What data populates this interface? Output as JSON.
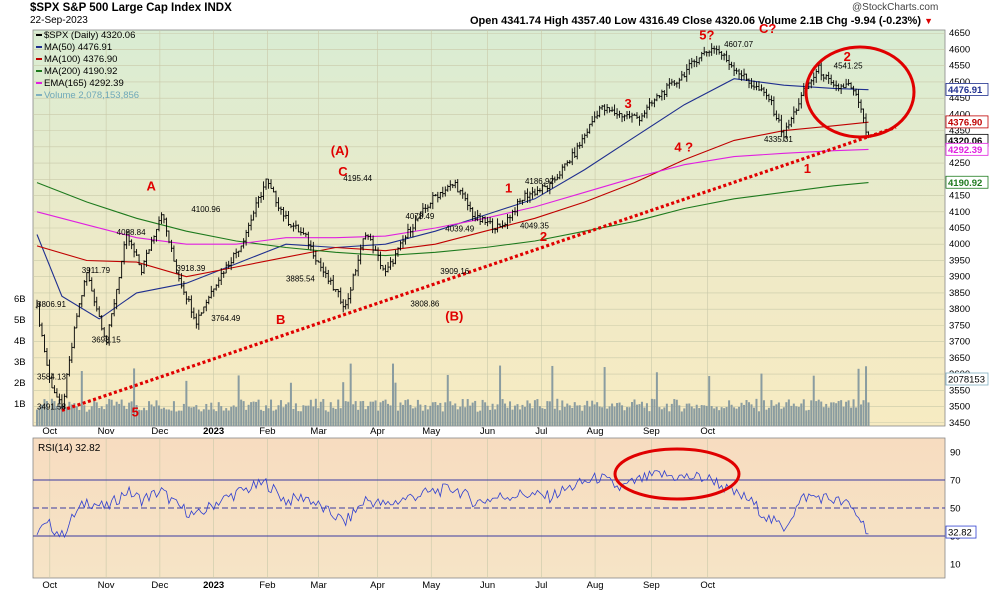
{
  "header": {
    "symbol_line": "$SPX S&P 500 Large Cap Index INDX",
    "date": "22-Sep-2023",
    "watermark": "@StockCharts.com",
    "ohlc": "Open 4341.74  High 4357.40  Low 4316.49  Close 4320.06  Volume 2.1B  Chg -9.94 (-0.23%)",
    "down_glyph": "▼"
  },
  "legend": [
    {
      "text": "$SPX (Daily) 4320.06",
      "color": "#000000"
    },
    {
      "text": "MA(50) 4476.91",
      "color": "#1f2f8f"
    },
    {
      "text": "MA(100) 4376.90",
      "color": "#c00000"
    },
    {
      "text": "MA(200) 4190.92",
      "color": "#1e7a1e"
    },
    {
      "text": "EMA(165) 4292.39",
      "color": "#e020e0"
    },
    {
      "text": "Volume 2,078,153,856",
      "color": "#7fb0c0"
    }
  ],
  "rsi_label": "RSI(14) 32.82",
  "colors": {
    "grid": "#c9c9a9",
    "price_bar": "#000000",
    "volume": "#8a9ca0",
    "ma50": "#1f2f8f",
    "ma100": "#c00000",
    "ma200": "#1e7a1e",
    "ema165": "#e020e0",
    "trend": "#e00000",
    "annotation": "#e00000",
    "rsi_line": "#2f3fd0"
  },
  "chart_data": {
    "type": "candlestick",
    "x_labels": [
      "Oct",
      "Nov",
      "Dec",
      "2023",
      "Feb",
      "Mar",
      "Apr",
      "May",
      "Jun",
      "Jul",
      "Aug",
      "Sep",
      "Oct"
    ],
    "y_ticks": [
      3450,
      3500,
      3550,
      3600,
      3650,
      3700,
      3750,
      3800,
      3850,
      3900,
      3950,
      4000,
      4050,
      4100,
      4150,
      4200,
      4250,
      4300,
      4350,
      4400,
      4450,
      4500,
      4550,
      4600,
      4650
    ],
    "ylim": [
      3440,
      4660
    ],
    "volume_ticks": [
      "6B",
      "5B",
      "4B",
      "3B",
      "2B",
      "1B"
    ],
    "price_tags": [
      {
        "text": "4476.91",
        "value": 4476.91,
        "color": "#1f2f8f"
      },
      {
        "text": "4376.90",
        "value": 4376.9,
        "color": "#c00000"
      },
      {
        "text": "4320.06",
        "value": 4320.06,
        "color": "#000000"
      },
      {
        "text": "4292.39",
        "value": 4292.39,
        "color": "#e020e0"
      },
      {
        "text": "4190.92",
        "value": 4190.92,
        "color": "#1e7a1e"
      }
    ],
    "volume_tag": "2078153",
    "anchors": [
      [
        0,
        3806
      ],
      [
        5,
        3584
      ],
      [
        10,
        3491
      ],
      [
        16,
        3780
      ],
      [
        20,
        3911
      ],
      [
        28,
        3698
      ],
      [
        36,
        4028
      ],
      [
        42,
        3920
      ],
      [
        50,
        4100
      ],
      [
        56,
        3918
      ],
      [
        64,
        3764
      ],
      [
        72,
        3885
      ],
      [
        82,
        4000
      ],
      [
        92,
        4195
      ],
      [
        100,
        4078
      ],
      [
        108,
        4020
      ],
      [
        116,
        3900
      ],
      [
        124,
        3808
      ],
      [
        132,
        4039
      ],
      [
        140,
        3909
      ],
      [
        150,
        4050
      ],
      [
        160,
        4150
      ],
      [
        168,
        4186
      ],
      [
        176,
        4080
      ],
      [
        186,
        4049
      ],
      [
        196,
        4150
      ],
      [
        206,
        4180
      ],
      [
        216,
        4280
      ],
      [
        226,
        4420
      ],
      [
        234,
        4400
      ],
      [
        242,
        4390
      ],
      [
        250,
        4460
      ],
      [
        258,
        4510
      ],
      [
        266,
        4580
      ],
      [
        272,
        4607
      ],
      [
        278,
        4560
      ],
      [
        286,
        4500
      ],
      [
        294,
        4450
      ],
      [
        300,
        4335
      ],
      [
        308,
        4470
      ],
      [
        314,
        4541
      ],
      [
        320,
        4480
      ],
      [
        326,
        4490
      ],
      [
        330,
        4440
      ],
      [
        334,
        4320
      ]
    ],
    "ma_series": {
      "ma50": [
        [
          0,
          4030
        ],
        [
          10,
          3840
        ],
        [
          25,
          3770
        ],
        [
          40,
          3850
        ],
        [
          60,
          3880
        ],
        [
          80,
          3940
        ],
        [
          100,
          4000
        ],
        [
          120,
          3990
        ],
        [
          140,
          4000
        ],
        [
          160,
          4040
        ],
        [
          180,
          4090
        ],
        [
          200,
          4140
        ],
        [
          220,
          4230
        ],
        [
          240,
          4330
        ],
        [
          260,
          4430
        ],
        [
          280,
          4510
        ],
        [
          300,
          4490
        ],
        [
          320,
          4480
        ],
        [
          334,
          4476
        ]
      ],
      "ma100": [
        [
          0,
          3995
        ],
        [
          20,
          3950
        ],
        [
          40,
          3945
        ],
        [
          60,
          3900
        ],
        [
          80,
          3930
        ],
        [
          100,
          3960
        ],
        [
          120,
          3990
        ],
        [
          140,
          3980
        ],
        [
          160,
          4000
        ],
        [
          180,
          4040
        ],
        [
          200,
          4080
        ],
        [
          220,
          4130
        ],
        [
          240,
          4190
        ],
        [
          260,
          4260
        ],
        [
          280,
          4320
        ],
        [
          300,
          4350
        ],
        [
          320,
          4365
        ],
        [
          334,
          4376
        ]
      ],
      "ma200": [
        [
          0,
          4190
        ],
        [
          20,
          4130
        ],
        [
          40,
          4080
        ],
        [
          60,
          4040
        ],
        [
          80,
          4010
        ],
        [
          100,
          3990
        ],
        [
          120,
          3975
        ],
        [
          140,
          3965
        ],
        [
          160,
          3975
        ],
        [
          180,
          3990
        ],
        [
          200,
          4010
        ],
        [
          220,
          4040
        ],
        [
          240,
          4070
        ],
        [
          260,
          4110
        ],
        [
          280,
          4140
        ],
        [
          300,
          4160
        ],
        [
          320,
          4180
        ],
        [
          334,
          4190
        ]
      ],
      "ema165": [
        [
          0,
          4100
        ],
        [
          20,
          4060
        ],
        [
          40,
          4020
        ],
        [
          60,
          4000
        ],
        [
          80,
          4000
        ],
        [
          100,
          4020
        ],
        [
          120,
          4020
        ],
        [
          140,
          4025
        ],
        [
          160,
          4050
        ],
        [
          180,
          4080
        ],
        [
          200,
          4115
        ],
        [
          220,
          4160
        ],
        [
          240,
          4205
        ],
        [
          260,
          4245
        ],
        [
          280,
          4270
        ],
        [
          300,
          4280
        ],
        [
          320,
          4288
        ],
        [
          334,
          4292
        ]
      ]
    },
    "trendline": [
      [
        10,
        3488
      ],
      [
        345,
        4360
      ]
    ],
    "rsi": {
      "ylim": [
        0,
        100
      ],
      "ticks": [
        10,
        30,
        50,
        70,
        90
      ],
      "lines": [
        30,
        50,
        70
      ],
      "values": [
        [
          0,
          34
        ],
        [
          5,
          38
        ],
        [
          10,
          30
        ],
        [
          15,
          45
        ],
        [
          20,
          55
        ],
        [
          28,
          50
        ],
        [
          36,
          62
        ],
        [
          42,
          56
        ],
        [
          50,
          62
        ],
        [
          56,
          52
        ],
        [
          64,
          44
        ],
        [
          72,
          54
        ],
        [
          82,
          62
        ],
        [
          92,
          68
        ],
        [
          100,
          55
        ],
        [
          108,
          58
        ],
        [
          116,
          48
        ],
        [
          124,
          40
        ],
        [
          132,
          56
        ],
        [
          140,
          52
        ],
        [
          150,
          58
        ],
        [
          160,
          62
        ],
        [
          168,
          64
        ],
        [
          176,
          54
        ],
        [
          186,
          58
        ],
        [
          196,
          60
        ],
        [
          206,
          58
        ],
        [
          216,
          66
        ],
        [
          226,
          72
        ],
        [
          234,
          64
        ],
        [
          242,
          70
        ],
        [
          250,
          74
        ],
        [
          258,
          72
        ],
        [
          266,
          72
        ],
        [
          272,
          70
        ],
        [
          278,
          62
        ],
        [
          286,
          56
        ],
        [
          294,
          42
        ],
        [
          300,
          36
        ],
        [
          308,
          58
        ],
        [
          314,
          58
        ],
        [
          320,
          56
        ],
        [
          326,
          52
        ],
        [
          330,
          44
        ],
        [
          334,
          33
        ]
      ],
      "last_tag": "32.82"
    },
    "annotations": [
      {
        "text": "3806.91",
        "i": 0,
        "v": 3806,
        "color": "#000000",
        "size": 8
      },
      {
        "text": "3584.13",
        "i": 0,
        "v": 3584,
        "color": "#000000",
        "size": 8
      },
      {
        "text": "3491.58",
        "i": 0,
        "v": 3491,
        "color": "#000000",
        "size": 8
      },
      {
        "text": "5",
        "i": 38,
        "v": 3470,
        "color": "#e00000",
        "size": 13
      },
      {
        "text": "3911.79",
        "i": 18,
        "v": 3911,
        "color": "#000000",
        "size": 8
      },
      {
        "text": "3698.15",
        "i": 22,
        "v": 3698,
        "color": "#000000",
        "size": 8
      },
      {
        "text": "4028.84",
        "i": 32,
        "v": 4028,
        "color": "#000000",
        "size": 8
      },
      {
        "text": "A",
        "i": 44,
        "v": 4165,
        "color": "#e00000",
        "size": 13
      },
      {
        "text": "4100.96",
        "i": 62,
        "v": 4100,
        "color": "#000000",
        "size": 8
      },
      {
        "text": "3918.39",
        "i": 56,
        "v": 3918,
        "color": "#000000",
        "size": 8
      },
      {
        "text": "3764.49",
        "i": 70,
        "v": 3764,
        "color": "#000000",
        "size": 8
      },
      {
        "text": "B",
        "i": 96,
        "v": 3755,
        "color": "#e00000",
        "size": 13
      },
      {
        "text": "3885.54",
        "i": 100,
        "v": 3885,
        "color": "#000000",
        "size": 8
      },
      {
        "text": "(A)",
        "i": 118,
        "v": 4275,
        "color": "#e00000",
        "size": 13
      },
      {
        "text": "C",
        "i": 121,
        "v": 4210,
        "color": "#e00000",
        "size": 13
      },
      {
        "text": "4195.44",
        "i": 123,
        "v": 4195,
        "color": "#000000",
        "size": 8
      },
      {
        "text": "4078.49",
        "i": 148,
        "v": 4078,
        "color": "#000000",
        "size": 8
      },
      {
        "text": "4039.49",
        "i": 164,
        "v": 4039,
        "color": "#000000",
        "size": 8
      },
      {
        "text": "3909.16",
        "i": 162,
        "v": 3909,
        "color": "#000000",
        "size": 8
      },
      {
        "text": "3808.86",
        "i": 150,
        "v": 3808,
        "color": "#000000",
        "size": 8
      },
      {
        "text": "(B)",
        "i": 164,
        "v": 3765,
        "color": "#e00000",
        "size": 13
      },
      {
        "text": "1",
        "i": 188,
        "v": 4160,
        "color": "#e00000",
        "size": 13
      },
      {
        "text": "4186.92",
        "i": 196,
        "v": 4186,
        "color": "#000000",
        "size": 8
      },
      {
        "text": "4049.35",
        "i": 194,
        "v": 4049,
        "color": "#000000",
        "size": 8
      },
      {
        "text": "2",
        "i": 202,
        "v": 4010,
        "color": "#e00000",
        "size": 13
      },
      {
        "text": "3",
        "i": 236,
        "v": 4420,
        "color": "#e00000",
        "size": 13
      },
      {
        "text": "4 ?",
        "i": 256,
        "v": 4285,
        "color": "#e00000",
        "size": 13
      },
      {
        "text": "5?",
        "i": 266,
        "v": 4630,
        "color": "#e00000",
        "size": 13
      },
      {
        "text": "4607.07",
        "i": 276,
        "v": 4607,
        "color": "#000000",
        "size": 8
      },
      {
        "text": "C?",
        "i": 290,
        "v": 4650,
        "color": "#e00000",
        "size": 13
      },
      {
        "text": "2",
        "i": 324,
        "v": 4565,
        "color": "#e00000",
        "size": 13
      },
      {
        "text": "4541.25",
        "i": 320,
        "v": 4541,
        "color": "#000000",
        "size": 8
      },
      {
        "text": "4335.31",
        "i": 292,
        "v": 4315,
        "color": "#000000",
        "size": 8
      },
      {
        "text": "1",
        "i": 308,
        "v": 4220,
        "color": "#e00000",
        "size": 13
      }
    ]
  }
}
